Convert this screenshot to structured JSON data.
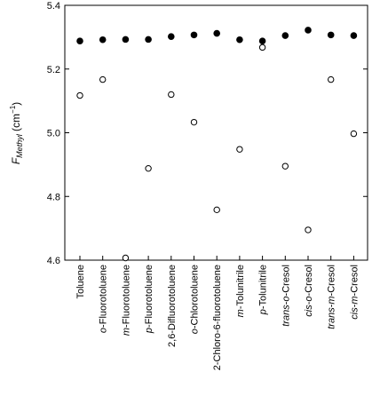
{
  "chart_data": {
    "type": "scatter",
    "ylabel_main": "F",
    "ylabel_subscript": "Methyl",
    "ylabel_unit": " (cm",
    "ylabel_unit_exp": "−1",
    "ylabel_unit_close": ")",
    "ylim": [
      4.6,
      5.4
    ],
    "yticks": [
      "4.6",
      "4.8",
      "5.0",
      "5.2",
      "5.4"
    ],
    "ytick_values": [
      4.6,
      4.8,
      5.0,
      5.2,
      5.4
    ],
    "legend": "none",
    "grid": false,
    "categories": [
      [
        {
          "t": "Toluene",
          "i": false
        }
      ],
      [
        {
          "t": "o",
          "i": true
        },
        {
          "t": "-Fluorotoluene",
          "i": false
        }
      ],
      [
        {
          "t": "m",
          "i": true
        },
        {
          "t": "-Fluorotoluene",
          "i": false
        }
      ],
      [
        {
          "t": "p",
          "i": true
        },
        {
          "t": "-Fluorotoluene",
          "i": false
        }
      ],
      [
        {
          "t": "2,6-Difluorotoluene",
          "i": false
        }
      ],
      [
        {
          "t": "o",
          "i": true
        },
        {
          "t": "-Chlorotoluene",
          "i": false
        }
      ],
      [
        {
          "t": "2-Chloro-6-fluorotoluene",
          "i": false
        }
      ],
      [
        {
          "t": "m",
          "i": true
        },
        {
          "t": "-Tolunitrile",
          "i": false
        }
      ],
      [
        {
          "t": "p",
          "i": true
        },
        {
          "t": "-Tolunitrile",
          "i": false
        }
      ],
      [
        {
          "t": "trans",
          "i": true
        },
        {
          "t": "-",
          "i": false
        },
        {
          "t": "o",
          "i": true
        },
        {
          "t": "-Cresol",
          "i": false
        }
      ],
      [
        {
          "t": "cis",
          "i": true
        },
        {
          "t": "-",
          "i": false
        },
        {
          "t": "o",
          "i": true
        },
        {
          "t": "-Cresol",
          "i": false
        }
      ],
      [
        {
          "t": "trans",
          "i": true
        },
        {
          "t": "-",
          "i": false
        },
        {
          "t": "m",
          "i": true
        },
        {
          "t": "-Cresol",
          "i": false
        }
      ],
      [
        {
          "t": "cis",
          "i": true
        },
        {
          "t": "-",
          "i": false
        },
        {
          "t": "m",
          "i": true
        },
        {
          "t": "-Cresol",
          "i": false
        }
      ]
    ],
    "series": [
      {
        "marker": "filled-circle",
        "values": [
          5.288,
          5.292,
          5.293,
          5.293,
          5.302,
          5.307,
          5.312,
          5.292,
          5.288,
          5.305,
          5.322,
          5.307,
          5.305
        ]
      },
      {
        "marker": "open-circle",
        "values": [
          5.117,
          5.167,
          4.607,
          4.888,
          5.12,
          5.033,
          4.758,
          4.948,
          5.268,
          4.895,
          4.695,
          5.167,
          4.997
        ]
      }
    ]
  }
}
